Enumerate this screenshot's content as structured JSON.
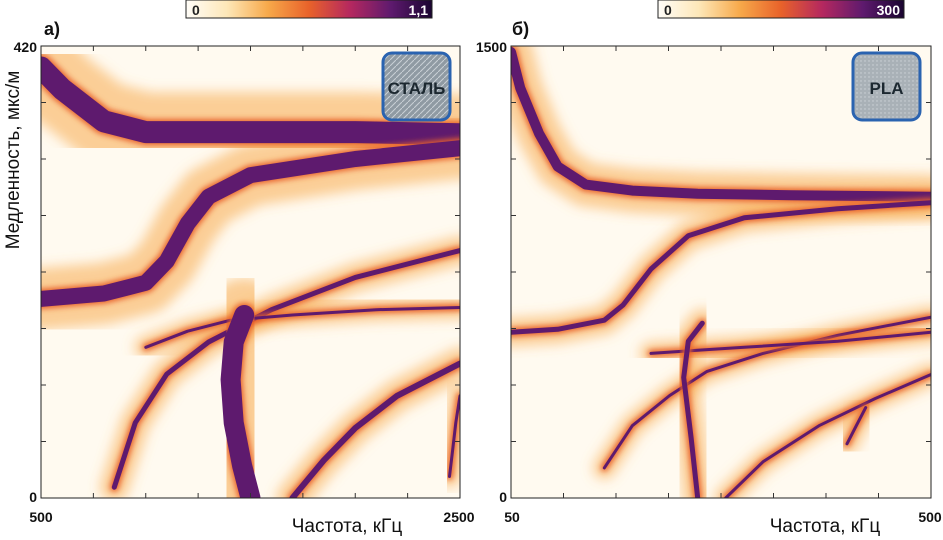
{
  "ylabel": "Медленность, мкс/м",
  "panels": [
    {
      "label": "а)",
      "material": "СТАЛЬ",
      "xlabel": "Частота, кГц",
      "xlim": [
        500,
        2500
      ],
      "ylim": [
        0,
        420
      ],
      "x_tick_labels": [
        "500",
        "2500"
      ],
      "y_tick_labels": [
        "0",
        "420"
      ],
      "colorbar": {
        "min_label": "0",
        "max_label": "1,1"
      },
      "badge_color": "#2a63b0"
    },
    {
      "label": "б)",
      "material": "PLA",
      "xlabel": "Частота, кГц",
      "xlim": [
        50,
        500
      ],
      "ylim": [
        0,
        1500
      ],
      "x_tick_labels": [
        "50",
        "500"
      ],
      "y_tick_labels": [
        "0",
        "1500"
      ],
      "colorbar": {
        "min_label": "0",
        "max_label": "300"
      },
      "badge_color": "#2a63b0"
    }
  ],
  "colormap": [
    "#fffdf8",
    "#fde7b8",
    "#f7a94a",
    "#e8622a",
    "#b5285f",
    "#5e1a6e",
    "#1a0530"
  ],
  "chart_data": [
    {
      "type": "heatmap",
      "title": "а)",
      "xlabel": "Частота, кГц",
      "ylabel": "Медленность, мкс/м",
      "xlim": [
        500,
        2500
      ],
      "ylim": [
        0,
        420
      ],
      "colorbar_range": [
        0,
        1.1
      ],
      "series": [
        {
          "x": [
            500,
            600,
            800,
            1000,
            1300,
            1600,
            2000,
            2500
          ],
          "y": [
            400,
            380,
            350,
            340,
            340,
            340,
            340,
            338
          ]
        },
        {
          "x": [
            500,
            800,
            1000,
            1100,
            1200,
            1300,
            1500,
            2000,
            2500
          ],
          "y": [
            185,
            190,
            200,
            220,
            255,
            280,
            300,
            315,
            325
          ]
        },
        {
          "x": [
            850,
            950,
            1100,
            1300,
            1600,
            2000,
            2500
          ],
          "y": [
            10,
            70,
            115,
            145,
            175,
            205,
            230
          ]
        },
        {
          "x": [
            1000,
            1200,
            1400,
            1700,
            2100,
            2500
          ],
          "y": [
            140,
            155,
            165,
            170,
            175,
            177
          ]
        },
        {
          "x": [
            1500,
            1460,
            1420,
            1405,
            1420,
            1470
          ],
          "y": [
            0,
            30,
            70,
            110,
            145,
            170
          ]
        },
        {
          "x": [
            1700,
            1850,
            2000,
            2200,
            2500
          ],
          "y": [
            0,
            35,
            65,
            95,
            125
          ]
        },
        {
          "x": [
            2450,
            2465,
            2480,
            2500
          ],
          "y": [
            20,
            45,
            70,
            95
          ]
        }
      ]
    },
    {
      "type": "heatmap",
      "title": "б)",
      "xlabel": "Частота, кГц",
      "ylabel": "Медленность, мкс/м",
      "xlim": [
        50,
        500
      ],
      "ylim": [
        0,
        1500
      ],
      "colorbar_range": [
        0,
        300
      ],
      "series": [
        {
          "x": [
            50,
            60,
            80,
            100,
            130,
            180,
            250,
            350,
            500
          ],
          "y": [
            1480,
            1360,
            1210,
            1100,
            1040,
            1020,
            1010,
            1005,
            1000
          ]
        },
        {
          "x": [
            50,
            100,
            150,
            170,
            200,
            240,
            300,
            400,
            500
          ],
          "y": [
            550,
            560,
            590,
            640,
            760,
            870,
            930,
            960,
            980
          ]
        },
        {
          "x": [
            150,
            180,
            220,
            260,
            320,
            400,
            500
          ],
          "y": [
            100,
            240,
            340,
            420,
            480,
            540,
            600
          ]
        },
        {
          "x": [
            200,
            250,
            300,
            400,
            500
          ],
          "y": [
            480,
            490,
            500,
            520,
            550
          ]
        },
        {
          "x": [
            250,
            243,
            235,
            240,
            255
          ],
          "y": [
            0,
            200,
            400,
            520,
            580
          ]
        },
        {
          "x": [
            280,
            320,
            380,
            440,
            500
          ],
          "y": [
            0,
            120,
            240,
            330,
            410
          ]
        },
        {
          "x": [
            410,
            420,
            430
          ],
          "y": [
            180,
            240,
            300
          ]
        }
      ]
    }
  ]
}
